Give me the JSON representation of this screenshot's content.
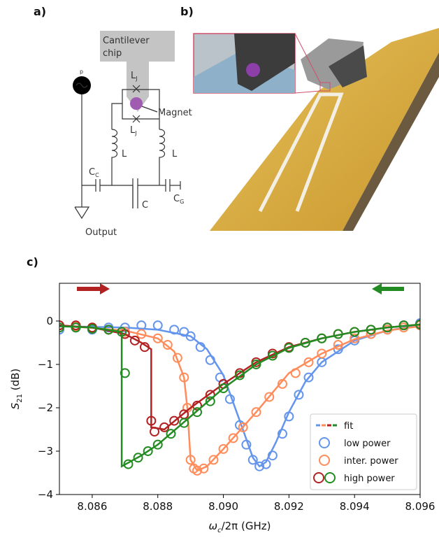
{
  "panel_labels": [
    "a)",
    "b)",
    "c)"
  ],
  "diagram": {
    "cantilever": [
      "Cantilever",
      "chip"
    ],
    "source": "p",
    "lj_top": {
      "main": "L",
      "sub": "J"
    },
    "lj_bottom": {
      "main": "L",
      "sub": "J"
    },
    "magnet": "Magnet",
    "inductor_left": "L",
    "inductor_right": "L",
    "cc": {
      "main": "C",
      "sub": "C"
    },
    "c": "C",
    "cg": {
      "main": "C",
      "sub": "G"
    },
    "output": "Output"
  },
  "chart_data": {
    "type": "scatter",
    "xlabel": {
      "main": "ω",
      "sub": "c",
      "rest": "/2π (GHz)"
    },
    "ylabel": {
      "main": "S",
      "sub": "21",
      "rest": " (dB)"
    },
    "xlim": [
      8.085,
      8.096
    ],
    "ylim": [
      -4,
      0.87
    ],
    "xticks": [
      8.086,
      8.088,
      8.09,
      8.092,
      8.094,
      8.096
    ],
    "xtick_labels": [
      "8.086",
      "8.088",
      "8.090",
      "8.092",
      "8.094",
      "8.096"
    ],
    "yticks": [
      {
        "value": -4,
        "label": "−4"
      },
      {
        "value": -3,
        "label": "−3"
      },
      {
        "value": -2,
        "label": "−2"
      },
      {
        "value": -1,
        "label": "−1"
      },
      0
    ],
    "series": [
      {
        "style": "circle",
        "color": "#6495ed",
        "x": [
          8.085,
          8.0855,
          8.086,
          8.0865,
          8.087,
          8.0875,
          8.088,
          8.0885,
          8.0888,
          8.089,
          8.0893,
          8.0896,
          8.0899,
          8.0902,
          8.0905,
          8.0907,
          8.0909,
          8.0911,
          8.0913,
          8.0915,
          8.0918,
          8.092,
          8.0923,
          8.0926,
          8.093,
          8.0935,
          8.094,
          8.0945,
          8.095,
          8.0955,
          8.096
        ],
        "values": [
          -0.2,
          -0.15,
          -0.2,
          -0.15,
          -0.15,
          -0.1,
          -0.1,
          -0.2,
          -0.25,
          -0.35,
          -0.6,
          -0.9,
          -1.3,
          -1.8,
          -2.4,
          -2.85,
          -3.2,
          -3.35,
          -3.3,
          -3.1,
          -2.6,
          -2.2,
          -1.7,
          -1.3,
          -0.95,
          -0.65,
          -0.45,
          -0.3,
          -0.2,
          -0.1,
          -0.05
        ]
      },
      {
        "style": "line",
        "color": "#6495ed",
        "x": [
          8.085,
          8.087,
          8.088,
          8.089,
          8.0895,
          8.09,
          8.0905,
          8.0909,
          8.0911,
          8.0913,
          8.0916,
          8.092,
          8.0925,
          8.093,
          8.094,
          8.095,
          8.096
        ],
        "values": [
          -0.12,
          -0.15,
          -0.2,
          -0.35,
          -0.65,
          -1.25,
          -2.3,
          -3.15,
          -3.35,
          -3.25,
          -2.8,
          -2.1,
          -1.4,
          -0.95,
          -0.45,
          -0.22,
          -0.1
        ]
      },
      {
        "style": "circle",
        "color": "#ff8c5a",
        "x": [
          8.085,
          8.0855,
          8.086,
          8.0865,
          8.087,
          8.0875,
          8.088,
          8.0883,
          8.0886,
          8.0888,
          8.0889,
          8.089,
          8.0891,
          8.0892,
          8.0894,
          8.0897,
          8.09,
          8.0903,
          8.0906,
          8.091,
          8.0914,
          8.0918,
          8.0922,
          8.0926,
          8.093,
          8.0935,
          8.094,
          8.0945,
          8.095,
          8.0955,
          8.096
        ],
        "values": [
          -0.1,
          -0.12,
          -0.15,
          -0.2,
          -0.25,
          -0.3,
          -0.4,
          -0.55,
          -0.85,
          -1.3,
          -2.0,
          -3.2,
          -3.4,
          -3.45,
          -3.4,
          -3.2,
          -2.95,
          -2.7,
          -2.45,
          -2.1,
          -1.75,
          -1.45,
          -1.2,
          -0.95,
          -0.75,
          -0.55,
          -0.4,
          -0.3,
          -0.2,
          -0.15,
          -0.1
        ]
      },
      {
        "style": "line",
        "color": "#ff8c5a",
        "x": [
          8.085,
          8.087,
          8.088,
          8.0885,
          8.0888,
          8.0889,
          8.089,
          8.0892,
          8.0895,
          8.09,
          8.091,
          8.092,
          8.093,
          8.094,
          8.095,
          8.096
        ],
        "values": [
          -0.1,
          -0.22,
          -0.4,
          -0.7,
          -1.3,
          -2.0,
          -3.2,
          -3.45,
          -3.35,
          -2.95,
          -2.1,
          -1.2,
          -0.75,
          -0.42,
          -0.22,
          -0.12
        ]
      },
      {
        "style": "circle",
        "color": "#b22222",
        "x": [
          8.085,
          8.0855,
          8.086,
          8.0865,
          8.087,
          8.0873,
          8.0876,
          8.0878,
          8.0879,
          8.0882,
          8.0885,
          8.0888,
          8.0892,
          8.0896,
          8.09,
          8.0905,
          8.091,
          8.0915,
          8.092,
          8.0925,
          8.093,
          8.0935,
          8.094,
          8.0945,
          8.095,
          8.0955,
          8.096
        ],
        "values": [
          -0.1,
          -0.1,
          -0.15,
          -0.2,
          -0.3,
          -0.45,
          -0.6,
          -2.3,
          -2.55,
          -2.45,
          -2.3,
          -2.15,
          -1.95,
          -1.7,
          -1.45,
          -1.2,
          -0.95,
          -0.75,
          -0.6,
          -0.5,
          -0.4,
          -0.3,
          -0.25,
          -0.2,
          -0.15,
          -0.1,
          -0.08
        ]
      },
      {
        "style": "line",
        "color": "#b22222",
        "x": [
          8.085,
          8.086,
          8.087,
          8.0875,
          8.0878,
          8.0878,
          8.0882,
          8.089,
          8.09,
          8.091,
          8.092,
          8.093,
          8.094,
          8.095,
          8.096
        ],
        "values": [
          -0.1,
          -0.15,
          -0.3,
          -0.5,
          -0.65,
          -2.45,
          -2.5,
          -2.0,
          -1.45,
          -0.95,
          -0.6,
          -0.4,
          -0.25,
          -0.15,
          -0.08
        ]
      },
      {
        "style": "circle",
        "color": "#228b22",
        "x": [
          8.085,
          8.0855,
          8.086,
          8.0865,
          8.0869,
          8.087,
          8.0871,
          8.0874,
          8.0877,
          8.088,
          8.0884,
          8.0888,
          8.0892,
          8.0896,
          8.09,
          8.0905,
          8.091,
          8.0915,
          8.092,
          8.0925,
          8.093,
          8.0935,
          8.094,
          8.0945,
          8.095,
          8.0955,
          8.096
        ],
        "values": [
          -0.15,
          -0.15,
          -0.18,
          -0.2,
          -0.25,
          -1.2,
          -3.3,
          -3.15,
          -3.0,
          -2.85,
          -2.6,
          -2.35,
          -2.1,
          -1.85,
          -1.55,
          -1.25,
          -1.0,
          -0.8,
          -0.62,
          -0.5,
          -0.4,
          -0.3,
          -0.25,
          -0.2,
          -0.15,
          -0.1,
          -0.08
        ]
      },
      {
        "style": "line",
        "color": "#228b22",
        "x": [
          8.085,
          8.086,
          8.0869,
          8.0869,
          8.0875,
          8.088,
          8.089,
          8.09,
          8.091,
          8.092,
          8.093,
          8.094,
          8.095,
          8.096
        ],
        "values": [
          -0.12,
          -0.15,
          -0.25,
          -3.35,
          -3.1,
          -2.85,
          -2.2,
          -1.55,
          -1.0,
          -0.62,
          -0.4,
          -0.25,
          -0.15,
          -0.08
        ]
      }
    ],
    "legend": {
      "loc": "lower right",
      "entries": [
        {
          "label": "fit",
          "style": "line",
          "colors": [
            "#6495ed",
            "#ff8c5a",
            "#b22222",
            "#228b22"
          ]
        },
        {
          "label": "low power",
          "style": "circle",
          "colors": [
            "#6495ed"
          ]
        },
        {
          "label": "inter. power",
          "style": "circle",
          "colors": [
            "#ff8c5a"
          ]
        },
        {
          "label": "high power",
          "style": "circle",
          "colors": [
            "#b22222",
            "#228b22"
          ]
        }
      ]
    }
  }
}
